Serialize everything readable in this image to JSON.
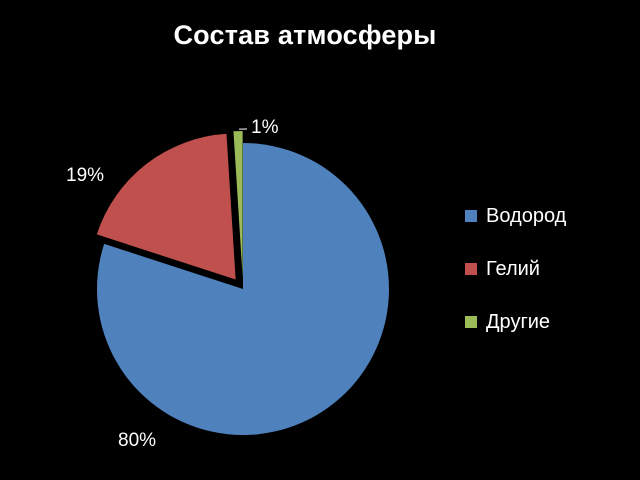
{
  "chart_data": {
    "type": "pie",
    "title": "Состав атмосферы",
    "categories": [
      "Водород",
      "Гелий",
      "Другие"
    ],
    "values": [
      80,
      19,
      1
    ],
    "labels": [
      "80%",
      "19%",
      "1%"
    ],
    "colors": [
      "#4F81BD",
      "#C0504D",
      "#9BBB59"
    ],
    "exploded": [
      false,
      true,
      true
    ],
    "legend_position": "right"
  }
}
